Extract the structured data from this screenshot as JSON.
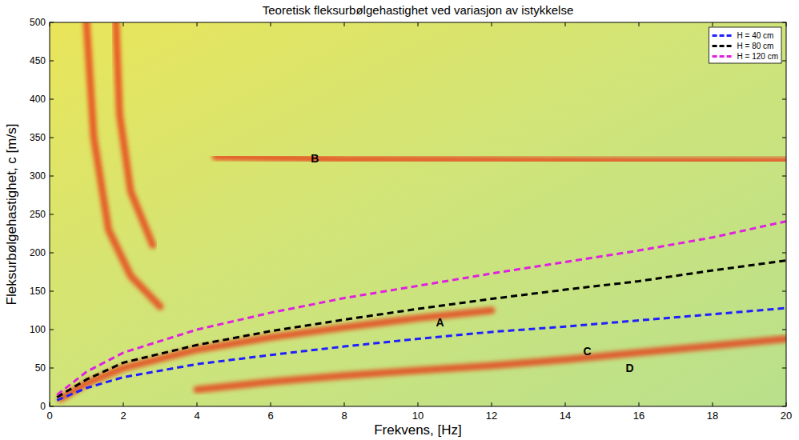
{
  "chart_data": {
    "type": "line",
    "title": "Teoretisk fleksurbølgehastighet ved variasjon av istykkelse",
    "x_label": "Frekvens, [Hz]",
    "y_label": "Fleksurbølgehastighet, c [m/s]",
    "xlim": [
      0,
      20
    ],
    "ylim": [
      0,
      500
    ],
    "xticks": [
      0,
      2,
      4,
      6,
      8,
      10,
      12,
      14,
      16,
      18,
      20
    ],
    "yticks": [
      0,
      50,
      100,
      150,
      200,
      250,
      300,
      350,
      400,
      450,
      500
    ],
    "legend": "top-right",
    "series": [
      {
        "name": "H = 40 cm",
        "color": "#1f1fff",
        "line_style": "dashed",
        "x": [
          0.2,
          1,
          2,
          4,
          6,
          8,
          10,
          12,
          14,
          16,
          18,
          20
        ],
        "values": [
          8,
          24,
          38,
          55,
          67,
          78,
          88,
          97,
          104,
          112,
          120,
          128
        ]
      },
      {
        "name": "H = 80 cm",
        "color": "#000000",
        "line_style": "dashed",
        "x": [
          0.2,
          1,
          2,
          4,
          6,
          8,
          10,
          12,
          14,
          16,
          18,
          20
        ],
        "values": [
          12,
          35,
          57,
          80,
          98,
          113,
          127,
          140,
          152,
          163,
          177,
          190
        ]
      },
      {
        "name": "H = 120 cm",
        "color": "#e020e0",
        "line_style": "dashed",
        "x": [
          0.2,
          1,
          2,
          4,
          6,
          8,
          10,
          12,
          14,
          16,
          18,
          20
        ],
        "values": [
          15,
          45,
          70,
          100,
          122,
          141,
          157,
          173,
          188,
          203,
          220,
          241
        ]
      }
    ],
    "bands": [
      {
        "color": "#e8300f",
        "x": [
          0.3,
          1,
          2,
          4,
          6,
          8,
          10,
          12
        ],
        "values": [
          10,
          30,
          50,
          74,
          90,
          103,
          115,
          125
        ]
      },
      {
        "color": "#e8300f",
        "x": [
          4.5,
          8,
          12,
          16,
          20
        ],
        "values": [
          325,
          322,
          321,
          320,
          320
        ]
      },
      {
        "color": "#e8300f",
        "x": [
          4,
          6,
          8,
          10,
          12,
          14,
          16,
          18,
          20
        ],
        "values": [
          22,
          32,
          40,
          47,
          53,
          61,
          70,
          79,
          88
        ]
      },
      {
        "color": "#e8300f",
        "x": [
          1.0,
          1.2,
          1.6,
          2.2,
          3.0
        ],
        "values": [
          500,
          350,
          230,
          170,
          130
        ]
      },
      {
        "color": "#e8300f",
        "x": [
          1.8,
          1.9,
          2.2,
          2.8
        ],
        "values": [
          500,
          380,
          280,
          210
        ]
      }
    ],
    "annotations": [
      {
        "text": "A",
        "x": 10.6,
        "y": 109
      },
      {
        "text": "B",
        "x": 7.2,
        "y": 323
      },
      {
        "text": "C",
        "x": 14.6,
        "y": 72
      },
      {
        "text": "D",
        "x": 15.75,
        "y": 50
      }
    ]
  }
}
